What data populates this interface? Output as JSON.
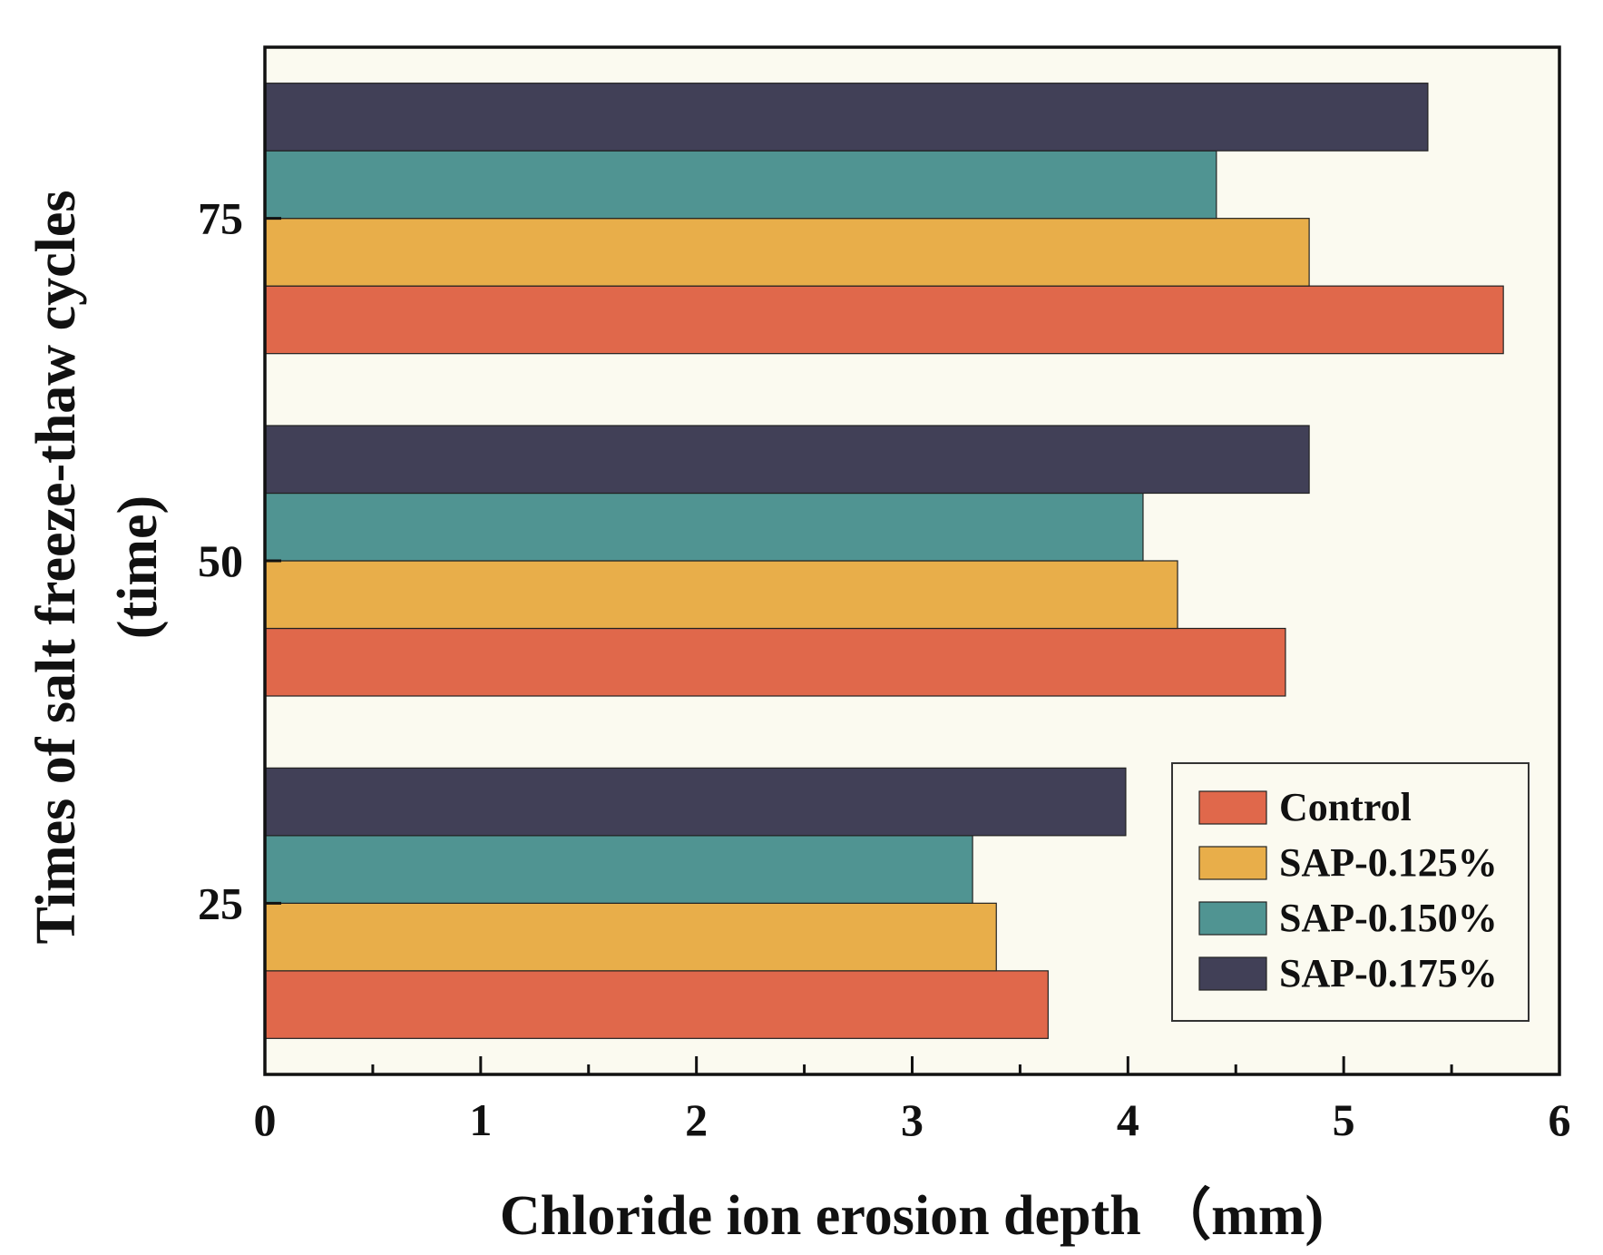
{
  "chart_data": {
    "type": "bar",
    "orientation": "horizontal",
    "title": "",
    "xlabel": "Chloride ion erosion depth （mm)",
    "ylabel": "Times of salt freeze-thaw cycles",
    "ylabel_line2": "(time)",
    "xlim": [
      0,
      6
    ],
    "xticks": [
      "0",
      "1",
      "2",
      "3",
      "4",
      "5",
      "6"
    ],
    "categories": [
      "25",
      "50",
      "75"
    ],
    "series": [
      {
        "name": "Control",
        "color": "#E0684B",
        "values": [
          3.63,
          4.73,
          5.74
        ]
      },
      {
        "name": "SAP-0.125%",
        "color": "#E8AE4A",
        "values": [
          3.39,
          4.23,
          4.84
        ]
      },
      {
        "name": "SAP-0.150%",
        "color": "#509492",
        "values": [
          3.28,
          4.07,
          4.41
        ]
      },
      {
        "name": "SAP-0.175%",
        "color": "#414057",
        "values": [
          3.99,
          4.84,
          5.39
        ]
      }
    ],
    "legend_position": "bottom-right",
    "plot_background": "#FBFAF0"
  }
}
